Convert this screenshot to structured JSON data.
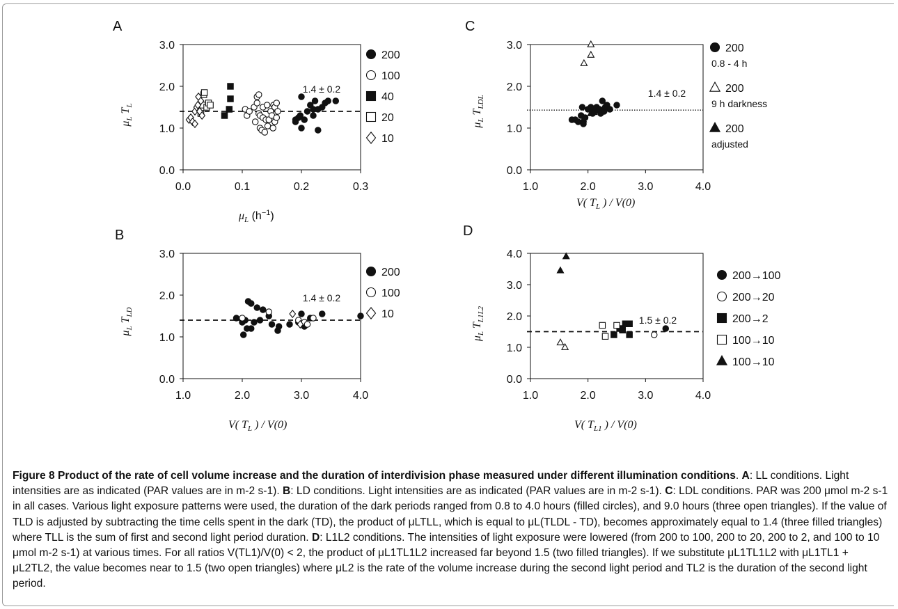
{
  "chart_data": [
    {
      "type": "scatter",
      "panel": "A",
      "xlabel": "μL (h⁻¹)",
      "ylabel": "μL TL",
      "xlim": [
        0,
        0.3
      ],
      "ylim": [
        0,
        3
      ],
      "x_ticks": [
        "0.0",
        "0.1",
        "0.2",
        "0.3"
      ],
      "y_ticks": [
        "0.0",
        "1.0",
        "2.0",
        "3.0"
      ],
      "annotation": "1.4 ± 0.2",
      "reference_line": {
        "y": 1.4,
        "style": "dashed"
      },
      "legend": [
        {
          "label": "200",
          "marker": "filled-circle"
        },
        {
          "label": "100",
          "marker": "open-circle"
        },
        {
          "label": "40",
          "marker": "filled-square"
        },
        {
          "label": "20",
          "marker": "open-square"
        },
        {
          "label": "10",
          "marker": "open-diamond"
        }
      ],
      "series": [
        {
          "name": "200",
          "marker": "filled-circle",
          "points": [
            [
              0.19,
              1.15
            ],
            [
              0.19,
              1.2
            ],
            [
              0.195,
              1.25
            ],
            [
              0.198,
              1.3
            ],
            [
              0.2,
              1.75
            ],
            [
              0.2,
              1.0
            ],
            [
              0.205,
              1.2
            ],
            [
              0.21,
              1.4
            ],
            [
              0.215,
              1.55
            ],
            [
              0.22,
              1.45
            ],
            [
              0.22,
              1.3
            ],
            [
              0.223,
              1.65
            ],
            [
              0.228,
              1.45
            ],
            [
              0.228,
              0.95
            ],
            [
              0.235,
              1.5
            ],
            [
              0.24,
              1.6
            ],
            [
              0.245,
              1.65
            ],
            [
              0.258,
              1.65
            ]
          ]
        },
        {
          "name": "100",
          "marker": "open-circle",
          "points": [
            [
              0.105,
              1.45
            ],
            [
              0.108,
              1.3
            ],
            [
              0.112,
              1.4
            ],
            [
              0.12,
              1.5
            ],
            [
              0.122,
              1.15
            ],
            [
              0.125,
              1.6
            ],
            [
              0.125,
              1.75
            ],
            [
              0.128,
              1.8
            ],
            [
              0.128,
              1.35
            ],
            [
              0.13,
              1.0
            ],
            [
              0.13,
              1.3
            ],
            [
              0.133,
              0.95
            ],
            [
              0.135,
              1.25
            ],
            [
              0.135,
              1.5
            ],
            [
              0.138,
              0.9
            ],
            [
              0.14,
              1.2
            ],
            [
              0.142,
              1.55
            ],
            [
              0.143,
              1.05
            ],
            [
              0.145,
              1.2
            ],
            [
              0.148,
              1.4
            ],
            [
              0.15,
              1.3
            ],
            [
              0.152,
              1.0
            ],
            [
              0.153,
              1.55
            ],
            [
              0.155,
              1.15
            ],
            [
              0.155,
              1.5
            ],
            [
              0.158,
              1.25
            ],
            [
              0.158,
              1.6
            ],
            [
              0.16,
              1.4
            ]
          ]
        },
        {
          "name": "40",
          "marker": "filled-square",
          "points": [
            [
              0.07,
              1.3
            ],
            [
              0.078,
              1.45
            ],
            [
              0.08,
              2.0
            ],
            [
              0.08,
              1.7
            ]
          ]
        },
        {
          "name": "20",
          "marker": "open-square",
          "points": [
            [
              0.03,
              1.35
            ],
            [
              0.033,
              1.55
            ],
            [
              0.035,
              1.8
            ],
            [
              0.036,
              1.85
            ],
            [
              0.04,
              1.5
            ],
            [
              0.043,
              1.6
            ],
            [
              0.046,
              1.55
            ]
          ]
        },
        {
          "name": "10",
          "marker": "open-diamond",
          "points": [
            [
              0.01,
              1.2
            ],
            [
              0.013,
              1.25
            ],
            [
              0.016,
              1.15
            ],
            [
              0.02,
              1.4
            ],
            [
              0.02,
              1.1
            ],
            [
              0.023,
              1.5
            ],
            [
              0.025,
              1.55
            ],
            [
              0.026,
              1.75
            ],
            [
              0.028,
              1.4
            ],
            [
              0.03,
              1.65
            ],
            [
              0.032,
              1.3
            ]
          ]
        }
      ]
    },
    {
      "type": "scatter",
      "panel": "B",
      "xlabel": "V( TL ) / V(0)",
      "ylabel": "μL TLD",
      "xlim": [
        1,
        4
      ],
      "ylim": [
        0,
        3
      ],
      "x_ticks": [
        "1.0",
        "2.0",
        "3.0",
        "4.0"
      ],
      "y_ticks": [
        "0.0",
        "1.0",
        "2.0",
        "3.0"
      ],
      "annotation": "1.4 ± 0.2",
      "reference_line": {
        "y": 1.4,
        "style": "dashed"
      },
      "legend": [
        {
          "label": "200",
          "marker": "filled-circle"
        },
        {
          "label": "100",
          "marker": "open-circle"
        },
        {
          "label": "10",
          "marker": "open-diamond"
        }
      ],
      "series": [
        {
          "name": "200",
          "marker": "filled-circle",
          "points": [
            [
              1.9,
              1.45
            ],
            [
              2.0,
              1.35
            ],
            [
              2.02,
              1.05
            ],
            [
              2.05,
              1.4
            ],
            [
              2.08,
              1.2
            ],
            [
              2.1,
              1.85
            ],
            [
              2.15,
              1.8
            ],
            [
              2.15,
              1.2
            ],
            [
              2.2,
              1.35
            ],
            [
              2.25,
              1.7
            ],
            [
              2.3,
              1.4
            ],
            [
              2.35,
              1.65
            ],
            [
              2.45,
              1.5
            ],
            [
              2.5,
              1.3
            ],
            [
              2.6,
              1.15
            ],
            [
              2.62,
              1.25
            ],
            [
              2.8,
              1.3
            ],
            [
              2.95,
              1.35
            ],
            [
              3.0,
              1.55
            ],
            [
              3.05,
              1.25
            ],
            [
              3.15,
              1.45
            ],
            [
              3.35,
              1.55
            ],
            [
              4.0,
              1.5
            ]
          ]
        },
        {
          "name": "100",
          "marker": "open-circle",
          "points": [
            [
              2.0,
              1.45
            ],
            [
              2.45,
              1.6
            ],
            [
              2.95,
              1.4
            ],
            [
              3.05,
              1.35
            ],
            [
              3.1,
              1.3
            ],
            [
              3.2,
              1.45
            ]
          ]
        },
        {
          "name": "10",
          "marker": "open-diamond",
          "points": [
            [
              2.85,
              1.55
            ],
            [
              2.98,
              1.3
            ]
          ]
        }
      ]
    },
    {
      "type": "scatter",
      "panel": "C",
      "xlabel": "V( TL ) / V(0)",
      "ylabel": "μL TLDL",
      "xlim": [
        1,
        4
      ],
      "ylim": [
        0,
        3
      ],
      "x_ticks": [
        "1.0",
        "2.0",
        "3.0",
        "4.0"
      ],
      "y_ticks": [
        "0.0",
        "1.0",
        "2.0",
        "3.0"
      ],
      "annotation": "1.4 ± 0.2",
      "reference_line": {
        "y": 1.43,
        "style": "dotted"
      },
      "legend": [
        {
          "label": "200",
          "sublabel": "0.8 - 4 h",
          "marker": "filled-circle"
        },
        {
          "label": "200",
          "sublabel": "9 h darkness",
          "marker": "open-triangle"
        },
        {
          "label": "200",
          "sublabel": "adjusted",
          "marker": "filled-triangle"
        }
      ],
      "series": [
        {
          "name": "200 0.8 - 4 h",
          "marker": "filled-circle",
          "points": [
            [
              1.72,
              1.2
            ],
            [
              1.78,
              1.2
            ],
            [
              1.83,
              1.15
            ],
            [
              1.88,
              1.3
            ],
            [
              1.9,
              1.5
            ],
            [
              1.92,
              1.1
            ],
            [
              1.95,
              1.25
            ],
            [
              2.0,
              1.45
            ],
            [
              2.05,
              1.5
            ],
            [
              2.08,
              1.35
            ],
            [
              2.1,
              1.45
            ],
            [
              2.12,
              1.4
            ],
            [
              2.15,
              1.5
            ],
            [
              2.2,
              1.45
            ],
            [
              2.22,
              1.35
            ],
            [
              2.25,
              1.65
            ],
            [
              2.28,
              1.4
            ],
            [
              2.3,
              1.5
            ],
            [
              2.33,
              1.55
            ],
            [
              2.38,
              1.45
            ],
            [
              2.5,
              1.55
            ]
          ]
        },
        {
          "name": "200 9 h darkness",
          "marker": "open-triangle",
          "points": [
            [
              1.93,
              2.55
            ],
            [
              2.05,
              2.75
            ],
            [
              2.05,
              3.0
            ]
          ]
        },
        {
          "name": "200 adjusted",
          "marker": "filled-triangle",
          "points": [
            [
              1.92,
              1.2
            ],
            [
              2.05,
              1.35
            ],
            [
              2.1,
              1.38
            ]
          ]
        }
      ]
    },
    {
      "type": "scatter",
      "panel": "D",
      "xlabel": "V( TL1 ) / V(0)",
      "ylabel": "μL TL1L2",
      "xlim": [
        1,
        4
      ],
      "ylim": [
        0,
        4
      ],
      "x_ticks": [
        "1.0",
        "2.0",
        "3.0",
        "4.0"
      ],
      "y_ticks": [
        "0.0",
        "1.0",
        "2.0",
        "3.0",
        "4.0"
      ],
      "annotation": "1.5 ± 0.2",
      "reference_line": {
        "y": 1.5,
        "style": "dashed"
      },
      "legend": [
        {
          "label": "200→100",
          "marker": "filled-circle"
        },
        {
          "label": "200→20",
          "marker": "open-circle"
        },
        {
          "label": "200→2",
          "marker": "filled-square"
        },
        {
          "label": "100→10",
          "marker": "open-square"
        },
        {
          "label": "100→10",
          "marker": "filled-triangle"
        }
      ],
      "series": [
        {
          "name": "200→100",
          "marker": "filled-circle",
          "points": [
            [
              3.35,
              1.6
            ]
          ]
        },
        {
          "name": "200→20",
          "marker": "open-circle",
          "points": [
            [
              3.15,
              1.4
            ]
          ]
        },
        {
          "name": "200→2",
          "marker": "filled-square",
          "points": [
            [
              2.45,
              1.4
            ],
            [
              2.55,
              1.6
            ],
            [
              2.6,
              1.55
            ],
            [
              2.65,
              1.75
            ],
            [
              2.72,
              1.75
            ],
            [
              2.72,
              1.4
            ]
          ]
        },
        {
          "name": "100→10",
          "marker": "open-square",
          "points": [
            [
              2.25,
              1.7
            ],
            [
              2.3,
              1.35
            ],
            [
              2.5,
              1.7
            ]
          ]
        },
        {
          "name": "100→10 (μL1TL1 + μL2TL2)",
          "marker": "open-triangle",
          "points": [
            [
              1.52,
              1.15
            ],
            [
              1.6,
              1.0
            ]
          ]
        },
        {
          "name": "100→10",
          "marker": "filled-triangle",
          "points": [
            [
              1.52,
              3.45
            ],
            [
              1.62,
              3.9
            ]
          ]
        }
      ]
    }
  ],
  "caption": {
    "title": "Figure 8 Product of the rate of cell volume increase and the duration of interdivision phase measured under different illumination conditions",
    "a_label": "A",
    "a_text": ": LL conditions. Light intensities are as indicated (PAR values are in m-2 s-1). ",
    "b_label": "B",
    "b_text": ": LD conditions. Light intensities are as indicated (PAR values are in m-2 s-1). ",
    "c_label": "C",
    "c_text": ": LDL conditions. PAR was 200 μmol m-2 s-1 in all cases. Various light exposure patterns were used, the duration of the dark periods ranged from 0.8 to 4.0 hours (filled circles), and 9.0 hours (three open triangles). If the value of TLD is adjusted by subtracting the time cells spent in the dark (TD), the product of μLTLL, which is equal to μL(TLDL - TD), becomes approximately equal to 1.4 (three filled triangles) where TLL is the sum of first and second light period duration. ",
    "d_label": "D",
    "d_text": ": L1L2 conditions. The intensities of light exposure were lowered (from 200 to 100, 200 to 20, 200 to 2, and 100 to 10 μmol m-2 s-1) at various times. For all ratios V(TL1)/V(0) < 2, the product of μL1TL1L2 increased far beyond 1.5 (two filled triangles). If we substitute μL1TL1L2 with μL1TL1 + μL2TL2, the value becomes near to 1.5 (two open triangles) where μL2 is the rate of the volume increase during the second light period and TL2 is the duration of the second light period."
  }
}
